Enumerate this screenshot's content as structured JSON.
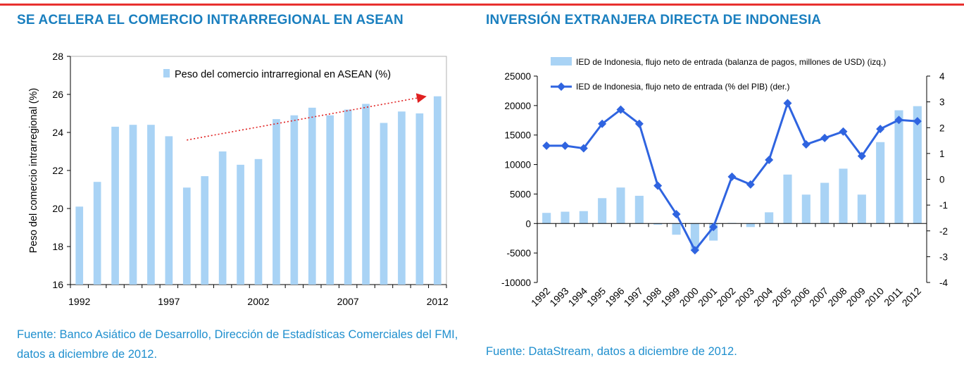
{
  "colors": {
    "accent_line": "#e8312f",
    "title_blue": "#1a7fbf",
    "source_blue": "#1f8fce",
    "bar_blue": "#a9d3f5",
    "line_blue": "#2f64e0",
    "trend_red": "#e02020"
  },
  "left_panel": {
    "title": "SE ACELERA EL COMERCIO INTRARREGIONAL EN ASEAN",
    "source": "Fuente: Banco Asiático de Desarrollo, Dirección de Estadísticas Comerciales del FMI, datos a diciembre de 2012."
  },
  "right_panel": {
    "title": "INVERSIÓN EXTRANJERA DIRECTA DE INDONESIA",
    "source": "Fuente: DataStream, datos a diciembre de 2012."
  },
  "chart_data": [
    {
      "type": "bar",
      "title": "",
      "ylabel": "Peso del comercio intrarregional (%)",
      "xlabel": "",
      "ylim": [
        16,
        28
      ],
      "yticks": [
        16,
        18,
        20,
        22,
        24,
        26,
        28
      ],
      "xtick_labels": [
        "1992",
        "1997",
        "2002",
        "2007",
        "2012"
      ],
      "grid": false,
      "legend": "top-center",
      "categories": [
        "1992",
        "1993",
        "1994",
        "1995",
        "1996",
        "1997",
        "1998",
        "1999",
        "2000",
        "2001",
        "2002",
        "2003",
        "2004",
        "2005",
        "2006",
        "2007",
        "2008",
        "2009",
        "2010",
        "2011",
        "2012"
      ],
      "series": [
        {
          "name": "Peso del comercio intrarregional en ASEAN (%)",
          "values": [
            20.1,
            21.4,
            24.3,
            24.4,
            24.4,
            23.8,
            21.1,
            21.7,
            23.0,
            22.3,
            22.6,
            24.7,
            24.9,
            25.3,
            24.9,
            25.2,
            25.5,
            24.5,
            25.1,
            25.0,
            25.9
          ]
        }
      ],
      "annotations": [
        {
          "type": "trend-arrow",
          "from": {
            "x": "1998",
            "y": 23.6
          },
          "to": {
            "x": "2011",
            "y": 25.9
          }
        }
      ]
    },
    {
      "type": "bar",
      "title": "",
      "xlabel": "",
      "grid": false,
      "legend": "top",
      "categories": [
        "1992",
        "1993",
        "1994",
        "1995",
        "1996",
        "1997",
        "1998",
        "1999",
        "2000",
        "2001",
        "2002",
        "2003",
        "2004",
        "2005",
        "2006",
        "2007",
        "2008",
        "2009",
        "2010",
        "2011",
        "2012"
      ],
      "y_left": {
        "lim": [
          -10000,
          25000
        ],
        "ticks": [
          -10000,
          -5000,
          0,
          5000,
          10000,
          15000,
          20000,
          25000
        ]
      },
      "y_right": {
        "lim": [
          -4,
          4
        ],
        "ticks": [
          -4,
          -3,
          -2,
          -1,
          0,
          1,
          2,
          3,
          4
        ]
      },
      "series": [
        {
          "name": "IED de Indonesia, flujo neto de entrada (balanza de pagos, millones de USD) (izq.)",
          "type": "bar",
          "axis": "left",
          "values": [
            1800,
            2000,
            2100,
            4300,
            6100,
            4700,
            -200,
            -1900,
            -4600,
            -2900,
            100,
            -600,
            1900,
            8300,
            4900,
            6900,
            9300,
            4900,
            13800,
            19200,
            19900
          ]
        },
        {
          "name": "IED de Indonesia, flujo neto de entrada (% del PIB) (der.)",
          "type": "line",
          "axis": "right",
          "values": [
            1.3,
            1.3,
            1.2,
            2.15,
            2.7,
            2.15,
            -0.25,
            -1.35,
            -2.75,
            -1.85,
            0.1,
            -0.2,
            0.75,
            2.95,
            1.35,
            1.6,
            1.85,
            0.9,
            1.95,
            2.3,
            2.25
          ]
        }
      ]
    }
  ]
}
